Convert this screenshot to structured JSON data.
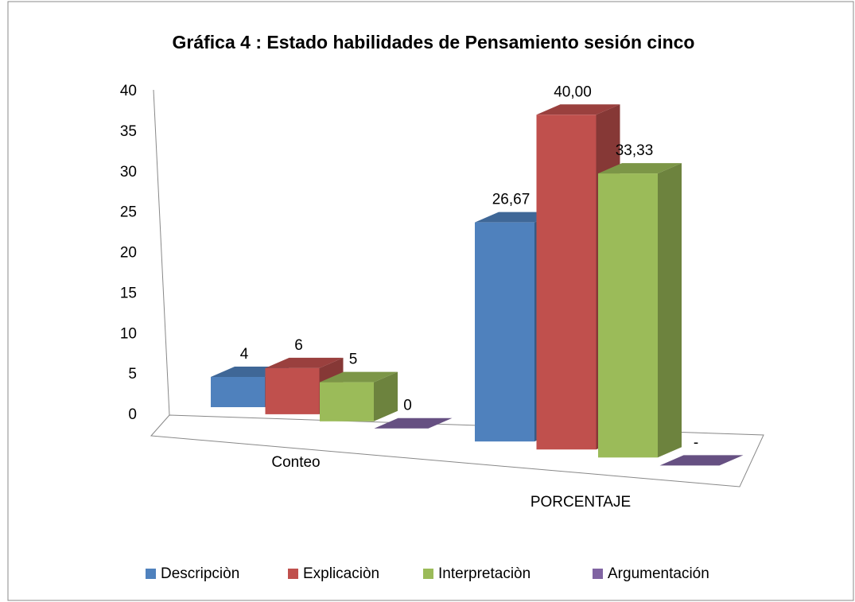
{
  "chart_data": {
    "type": "bar3d",
    "title": "Gráfica 4 : Estado habilidades de Pensamiento sesión  cinco",
    "categories": [
      "Conteo",
      "PORCENTAJE"
    ],
    "series": [
      {
        "name": "Descripciòn",
        "color": "#4f81bd",
        "values": [
          4,
          26.67
        ],
        "value_labels": [
          "4",
          "26,67"
        ]
      },
      {
        "name": "Explicaciòn",
        "color": "#c0504d",
        "values": [
          6,
          40
        ],
        "value_labels": [
          "6",
          "40,00"
        ]
      },
      {
        "name": "Interpretaciòn",
        "color": "#9bbb59",
        "values": [
          5,
          33.33
        ],
        "value_labels": [
          "5",
          "33,33"
        ]
      },
      {
        "name": "Argumentación",
        "color": "#8064a2",
        "values": [
          0,
          0
        ],
        "value_labels": [
          "0",
          "-"
        ]
      }
    ],
    "ylim": [
      0,
      40
    ],
    "yticks": [
      0,
      5,
      10,
      15,
      20,
      25,
      30,
      35,
      40
    ],
    "legend": "bottom"
  }
}
